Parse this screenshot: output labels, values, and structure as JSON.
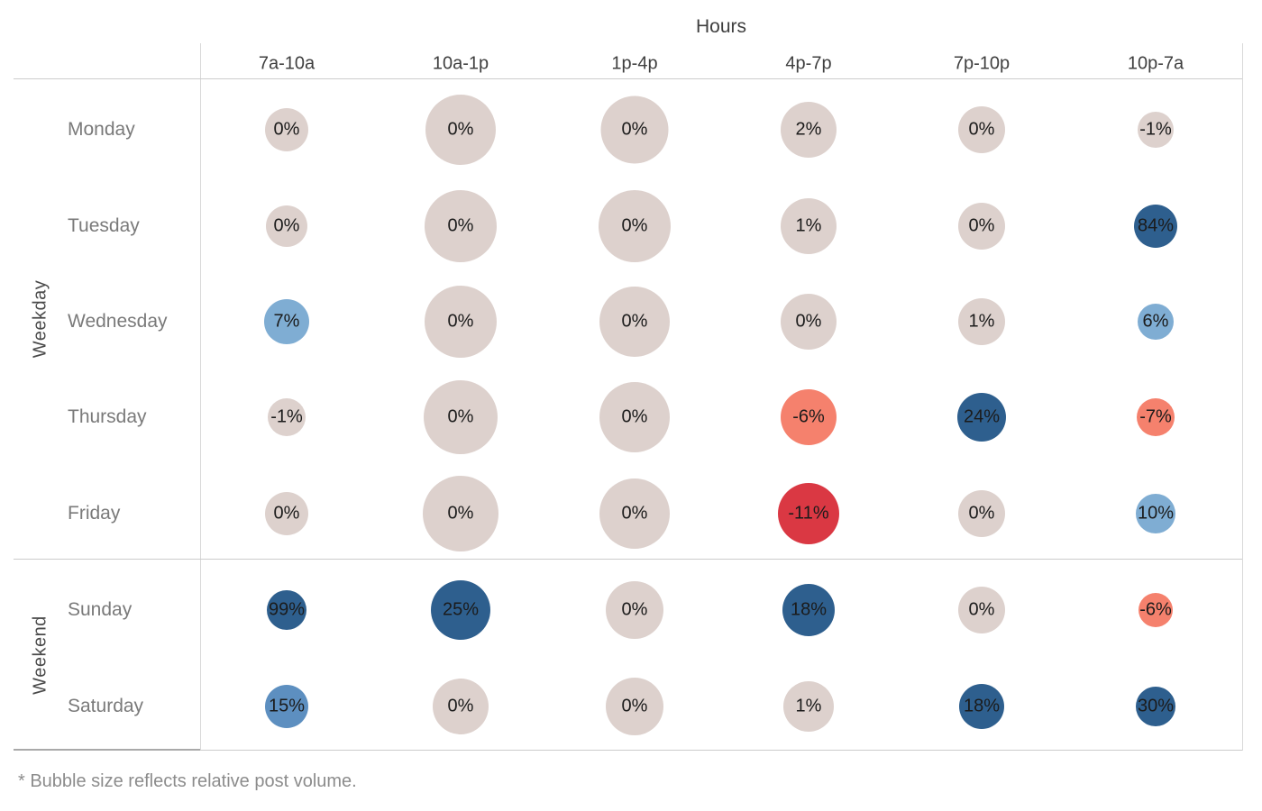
{
  "chart": {
    "title": "Hours",
    "footnote": "* Bubble size reflects relative post volume."
  },
  "chart_data": {
    "type": "bubble",
    "title": "Hours",
    "x_axis_label": "Hours",
    "y_axis_groups_label": [
      "Weekday",
      "Weekend"
    ],
    "columns": [
      "7a-10a",
      "10a-1p",
      "1p-4p",
      "4p-7p",
      "7p-10p",
      "10p-7a"
    ],
    "row_groups": [
      {
        "label": "Weekday",
        "days": [
          "Monday",
          "Tuesday",
          "Wednesday",
          "Thursday",
          "Friday"
        ]
      },
      {
        "label": "Weekend",
        "days": [
          "Sunday",
          "Saturday"
        ]
      }
    ],
    "note": "* Bubble size reflects relative post volume.",
    "palette": {
      "neutral": "#ddd1cd",
      "blue_dark": "#2e5f8e",
      "blue_medium": "#5d8fc0",
      "blue_light": "#7fadd3",
      "salmon": "#f5816d",
      "red": "#da3843"
    },
    "rows": [
      {
        "day": "Monday",
        "group": "Weekday",
        "values": [
          0,
          0,
          0,
          2,
          0,
          -1
        ],
        "labels": [
          "0%",
          "0%",
          "0%",
          "2%",
          "0%",
          "-1%"
        ],
        "sizes": [
          48,
          78,
          75,
          62,
          52,
          40
        ],
        "colors": [
          "neutral",
          "neutral",
          "neutral",
          "neutral",
          "neutral",
          "neutral"
        ]
      },
      {
        "day": "Tuesday",
        "group": "Weekday",
        "values": [
          0,
          0,
          0,
          1,
          0,
          84
        ],
        "labels": [
          "0%",
          "0%",
          "0%",
          "1%",
          "0%",
          "84%"
        ],
        "sizes": [
          46,
          80,
          80,
          62,
          52,
          48
        ],
        "colors": [
          "neutral",
          "neutral",
          "neutral",
          "neutral",
          "neutral",
          "blue_dark"
        ]
      },
      {
        "day": "Wednesday",
        "group": "Weekday",
        "values": [
          7,
          0,
          0,
          0,
          1,
          6
        ],
        "labels": [
          "7%",
          "0%",
          "0%",
          "0%",
          "1%",
          "6%"
        ],
        "sizes": [
          50,
          80,
          78,
          62,
          52,
          40
        ],
        "colors": [
          "blue_light",
          "neutral",
          "neutral",
          "neutral",
          "neutral",
          "blue_light"
        ]
      },
      {
        "day": "Thursday",
        "group": "Weekday",
        "values": [
          -1,
          0,
          0,
          -6,
          24,
          -7
        ],
        "labels": [
          "-1%",
          "0%",
          "0%",
          "-6%",
          "24%",
          "-7%"
        ],
        "sizes": [
          42,
          82,
          78,
          62,
          54,
          42
        ],
        "colors": [
          "neutral",
          "neutral",
          "neutral",
          "salmon",
          "blue_dark",
          "salmon"
        ]
      },
      {
        "day": "Friday",
        "group": "Weekday",
        "values": [
          0,
          0,
          0,
          -11,
          0,
          10
        ],
        "labels": [
          "0%",
          "0%",
          "0%",
          "-11%",
          "0%",
          "10%"
        ],
        "sizes": [
          48,
          84,
          78,
          68,
          52,
          44
        ],
        "colors": [
          "neutral",
          "neutral",
          "neutral",
          "red",
          "neutral",
          "blue_light"
        ]
      },
      {
        "day": "Sunday",
        "group": "Weekend",
        "values": [
          99,
          25,
          0,
          18,
          0,
          -6
        ],
        "labels": [
          "99%",
          "25%",
          "0%",
          "18%",
          "0%",
          "-6%"
        ],
        "sizes": [
          44,
          66,
          64,
          58,
          52,
          38
        ],
        "colors": [
          "blue_dark",
          "blue_dark",
          "neutral",
          "blue_dark",
          "neutral",
          "salmon"
        ]
      },
      {
        "day": "Saturday",
        "group": "Weekend",
        "values": [
          15,
          0,
          0,
          1,
          18,
          30
        ],
        "labels": [
          "15%",
          "0%",
          "0%",
          "1%",
          "18%",
          "30%"
        ],
        "sizes": [
          48,
          62,
          64,
          56,
          50,
          44
        ],
        "colors": [
          "blue_medium",
          "neutral",
          "neutral",
          "neutral",
          "blue_dark",
          "blue_dark"
        ]
      }
    ]
  }
}
